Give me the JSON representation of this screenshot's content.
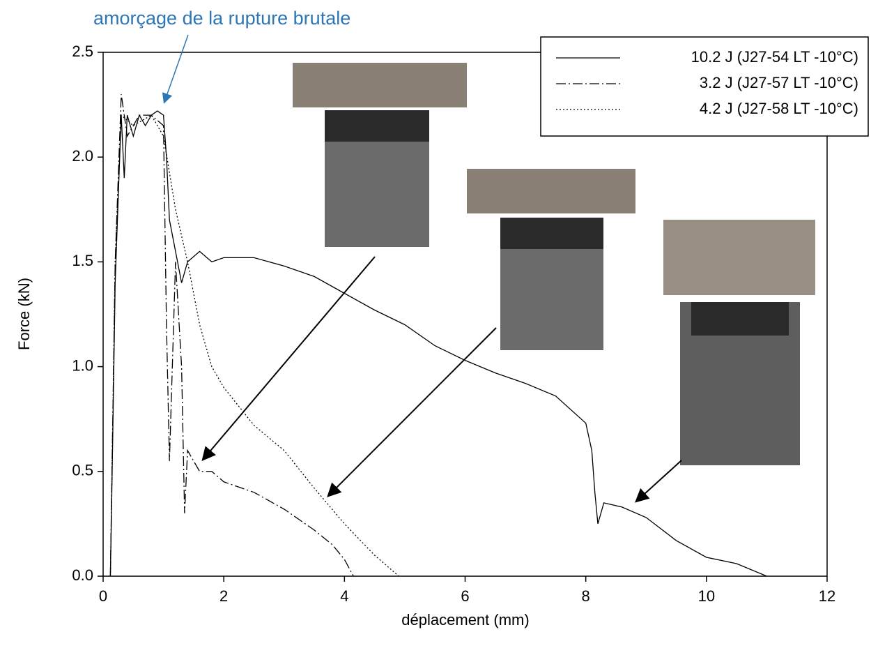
{
  "chart_data": {
    "type": "line",
    "annotation": "amorçage de la rupture brutale",
    "xlabel": "déplacement (mm)",
    "ylabel": "Force (kN)",
    "xlim": [
      0,
      12
    ],
    "xticks": [
      0,
      2,
      4,
      6,
      8,
      10,
      12
    ],
    "ylim": [
      0,
      2.5
    ],
    "yticks": [
      {
        "value": 0,
        "label": "0.0"
      },
      {
        "value": 0.5,
        "label": "0.5"
      },
      {
        "value": 1,
        "label": "1.0"
      },
      {
        "value": 1.5,
        "label": "1.5"
      },
      {
        "value": 2,
        "label": "2.0"
      },
      2.5
    ],
    "legend": "top-right",
    "series": [
      {
        "name": "10.2 J (J27-54 LT -10°C)",
        "color": "#000000",
        "dash": "solid",
        "x": [
          0.12,
          0.15,
          0.2,
          0.25,
          0.3,
          0.35,
          0.4,
          0.5,
          0.6,
          0.7,
          0.8,
          0.9,
          1.0,
          1.05,
          1.1,
          1.2,
          1.3,
          1.4,
          1.6,
          1.8,
          2.0,
          2.5,
          3.0,
          3.5,
          4.0,
          4.5,
          5.0,
          5.5,
          6.0,
          6.5,
          7.0,
          7.5,
          8.0,
          8.1,
          8.15,
          8.2,
          8.3,
          8.6,
          9.0,
          9.5,
          10.0,
          10.5,
          11.0
        ],
        "values": [
          0,
          0.5,
          1.4,
          1.8,
          2.2,
          1.9,
          2.2,
          2.1,
          2.2,
          2.15,
          2.2,
          2.22,
          2.2,
          2.0,
          1.7,
          1.55,
          1.4,
          1.5,
          1.55,
          1.5,
          1.52,
          1.52,
          1.48,
          1.43,
          1.35,
          1.27,
          1.2,
          1.1,
          1.03,
          0.97,
          0.92,
          0.86,
          0.73,
          0.6,
          0.4,
          0.25,
          0.35,
          0.33,
          0.28,
          0.17,
          0.09,
          0.06,
          0
        ]
      },
      {
        "name": "3.2 J (J27-57 LT -10°C)",
        "color": "#000000",
        "dash": "dashdot",
        "x": [
          0.12,
          0.2,
          0.3,
          0.4,
          0.6,
          0.8,
          1.0,
          1.05,
          1.1,
          1.2,
          1.3,
          1.35,
          1.4,
          1.6,
          1.8,
          2.0,
          2.5,
          3.0,
          3.5,
          3.8,
          4.0,
          4.15
        ],
        "values": [
          0,
          1.5,
          2.3,
          2.1,
          2.2,
          2.2,
          2.15,
          1.2,
          0.55,
          1.5,
          1.0,
          0.3,
          0.6,
          0.5,
          0.5,
          0.45,
          0.4,
          0.32,
          0.22,
          0.15,
          0.08,
          0
        ]
      },
      {
        "name": "4.2 J (J27-58 LT -10°C)",
        "color": "#000000",
        "dash": "dotted",
        "x": [
          0.12,
          0.2,
          0.3,
          0.5,
          0.8,
          1.0,
          1.2,
          1.4,
          1.6,
          1.8,
          2.0,
          2.5,
          3.0,
          3.5,
          4.0,
          4.5,
          4.9
        ],
        "values": [
          0,
          1.5,
          2.2,
          2.15,
          2.2,
          2.1,
          1.75,
          1.5,
          1.2,
          1.0,
          0.9,
          0.72,
          0.6,
          0.42,
          0.25,
          0.1,
          0
        ]
      }
    ]
  }
}
